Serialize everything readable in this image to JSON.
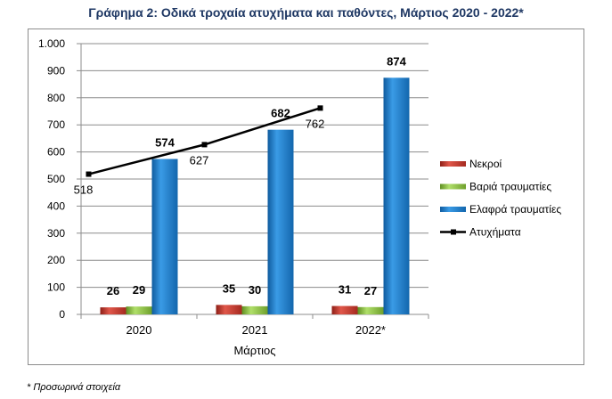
{
  "title": "Γράφημα 2: Οδικά τροχαία ατυχήματα και παθόντες, Μάρτιος 2020 - 2022*",
  "footnote": "* Προσωρινά στοιχεία",
  "chart_data": {
    "type": "bar",
    "title": "Γράφημα 2: Οδικά τροχαία ατυχήματα και παθόντες, Μάρτιος 2020 - 2022*",
    "xlabel": "Μάρτιος",
    "ylabel": "",
    "categories": [
      "2020",
      "2021",
      "2022*"
    ],
    "ylim": [
      0,
      1000
    ],
    "yticks": [
      0,
      100,
      200,
      300,
      400,
      500,
      600,
      700,
      800,
      900,
      1000
    ],
    "ytick_labels": [
      "0",
      "100",
      "200",
      "300",
      "400",
      "500",
      "600",
      "700",
      "800",
      "900",
      "1.000"
    ],
    "grid": true,
    "legend_position": "right",
    "series": [
      {
        "name": "Νεκροί",
        "type": "bar",
        "color": "#c0392b",
        "values": [
          26,
          35,
          31
        ]
      },
      {
        "name": "Βαριά τραυματίες",
        "type": "bar",
        "color": "#8cc63f",
        "values": [
          29,
          30,
          27
        ]
      },
      {
        "name": "Ελαφρά τραυματίες",
        "type": "bar",
        "color": "#1f7cc7",
        "values": [
          574,
          682,
          874
        ]
      },
      {
        "name": "Ατυχήματα",
        "type": "line",
        "color": "#000000",
        "values": [
          518,
          627,
          762
        ]
      }
    ]
  }
}
